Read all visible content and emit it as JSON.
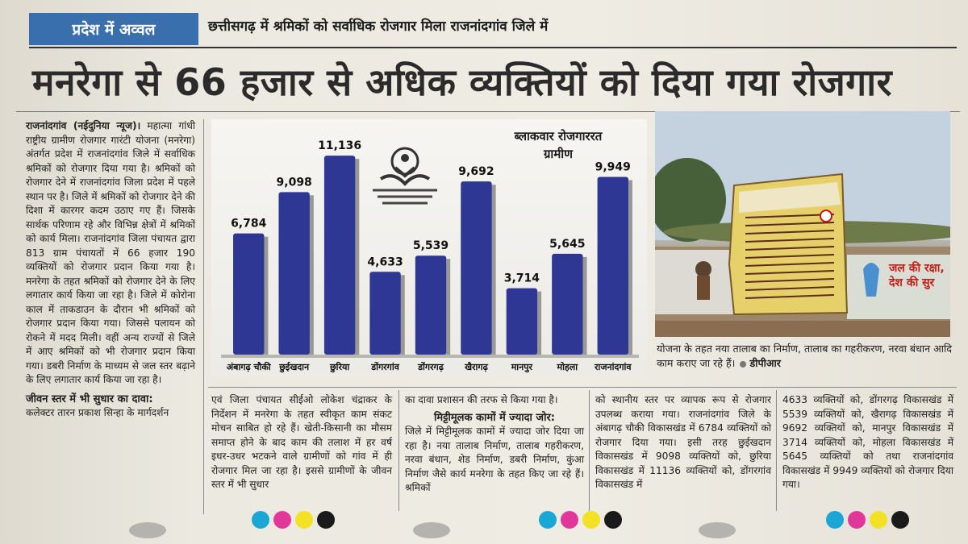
{
  "banner": {
    "kicker": "प्रदेश में अव्वल",
    "subtitle": "छत्तीसगढ़ में श्रमिकों को सर्वाधिक रोजगार मिला राजनांदगांव जिले में"
  },
  "headline": "मनरेगा से 66 हजार से अधिक व्यक्तियों को दिया गया रोजगार",
  "col1": {
    "dateline": "राजनांदगांव (नईदुनिया न्यूज)।",
    "body": "महात्मा गांधी राष्ट्रीय ग्रामीण रोजगार गारंटी योजना (मनरेगा) अंतर्गत प्रदेश में राजनांदगांव जिले में सर्वाधिक श्रमिकों को रोजगार दिया गया है। श्रमिकों को रोजगार देने में राजनांदगांव जिला प्रदेश में पहले स्थान पर है। जिले में श्रमिकों को रोजगार देने की दिशा में कारगर कदम उठाए गए हैं। जिसके सार्थक परिणाम रहे और विभिन्न क्षेत्रों में श्रमिकों को कार्य मिला। राजनांदगांव जिला पंचायत द्वारा 813 ग्राम पंचायतों में 66 हजार 190 व्यक्तियों को रोजगार प्रदान किया गया है। मनरेगा के तहत श्रमिकों को रोजगार देने के लिए लगातार कार्य किया जा रहा है। जिले में कोरोना काल में ताकडाउन के दौरान भी श्रमिकों को रोजगार प्रदान किया गया। जिससे पलायन को रोकने में मदद मिली। वहीं अन्य राज्यों से जिले में आए श्रमिकों को भी रोजगार प्रदान किया गया। डबरी निर्माण के माध्यम से जल स्तर बढ़ाने के लिए लगातार कार्य किया जा रहा है।",
    "subhead": "जीवन स्तर में भी सुधार का दावा:",
    "body2": "कलेक्टर तारन प्रकाश सिन्हा के मार्गदर्शन"
  },
  "col2": {
    "body": "एवं जिला पंचायत सीईओ लोकेश चंद्राकर के निर्देशन में मनरेगा के तहत स्वीकृत काम संकट मोचन साबित हो रहे हैं। खेती-किसानी का मौसम समाप्त होने के बाद काम की तलाश में हर वर्ष इधर-उधर भटकने वाले ग्रामीणों को गांव में ही रोजगार मिल जा रहा है। इससे ग्रामीणों के जीवन स्तर में भी सुधार"
  },
  "col3": {
    "lead": "का दावा प्रशासन की तरफ से किया गया है।",
    "subhead": "मिट्टीमूलक कामों में ज्यादा जोर:",
    "body": "जिले में मिट्टीमूलक कामों में ज्यादा जोर दिया जा रहा है। नया तालाब निर्माण, तालाब गहरीकरण, नरवा बंधान, शेड निर्माण, डबरी निर्माण, कुंआ निर्माण जैसे कार्य मनरेगा के तहत किए जा रहे हैं। श्रमिकों"
  },
  "col4": {
    "body": "को स्थानीय स्तर पर व्यापक रूप से रोजगार उपलब्ध कराया गया। राजनांदगांव जिले के अंबागढ़ चौकी विकासखंड में 6784 व्यक्तियों को रोजगार दिया गया। इसी तरह छुईखदान विकासखंड में 9098 व्यक्तियों को, छुरिया विकासखंड में 11136 व्यक्तियों को, डोंगरगांव विकासखंड में"
  },
  "col5": {
    "body": "4633 व्यक्तियों को, डोंगरगढ़ विकासखंड में 5539 व्यक्तियों को, खैरागढ़ विकासखंड में 9692 व्यक्तियों को, मानपुर विकासखंड में 3714 व्यक्तियों को, मोहला विकासखंड में 5645 व्यक्तियों को तथा राजनांदगांव विकासखंड में 9949 व्यक्तियों को रोजगार दिया गया।"
  },
  "photo": {
    "caption": "योजना के तहत नया तालाब का निर्माण, तालाब का गहरीकरण, नरवा बंधान आदि काम कराए जा रहे हैं।",
    "credit": "डीपीआर",
    "wall_text": "जल की रक्षा, देश की सुर"
  },
  "chart_data": {
    "type": "bar",
    "title": "ब्लाकवार रोजगाररत ग्रामीण",
    "categories": [
      "अंबागढ़ चौकी",
      "छुईखदान",
      "छुरिया",
      "डोंगरगांव",
      "डोंगरगढ़",
      "खैरागढ़",
      "मानपुर",
      "मोहला",
      "राजनांदगांव"
    ],
    "values": [
      6784,
      9098,
      11136,
      4633,
      5539,
      9692,
      3714,
      5645,
      9949
    ],
    "value_labels": [
      "6,784",
      "9,098",
      "11,136",
      "4,633",
      "5,539",
      "9,692",
      "3,714",
      "5,645",
      "9,949"
    ],
    "ylim": [
      0,
      12000
    ],
    "bar_color": "#2e3794",
    "grid": false,
    "legend": "none"
  },
  "colors": {
    "kicker_bg": "#3a6fae",
    "registration": [
      "#1aa7d6",
      "#e2379a",
      "#f2e125",
      "#1a1a1a"
    ]
  }
}
